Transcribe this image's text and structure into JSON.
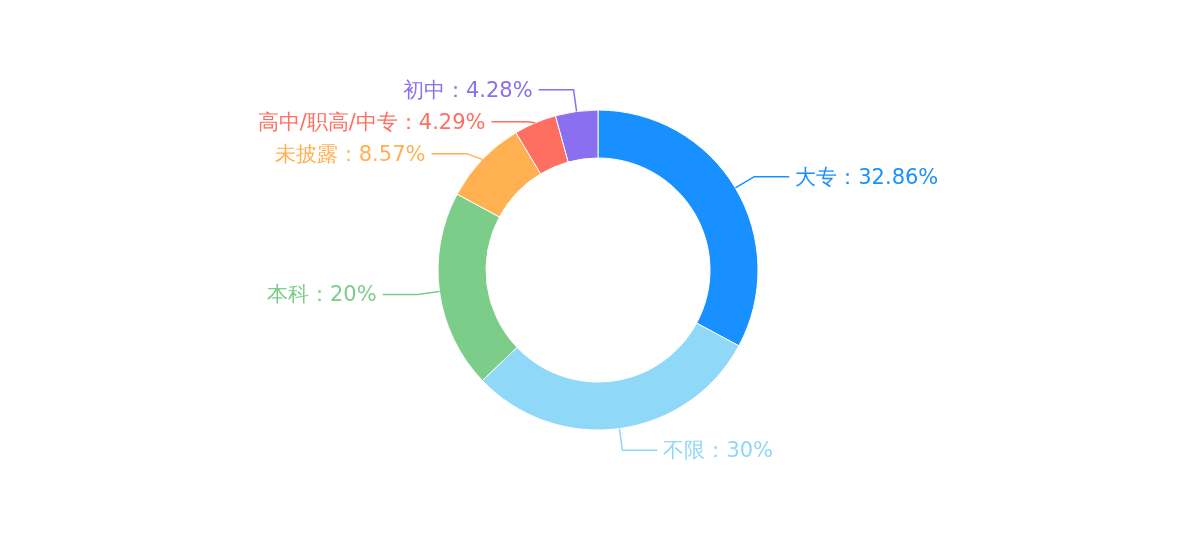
{
  "chart_data": {
    "type": "donut",
    "categories": [
      "大专",
      "不限",
      "本科",
      "未披露",
      "高中/职高/中专",
      "初中"
    ],
    "values": [
      32.86,
      30,
      20,
      8.57,
      4.29,
      4.28
    ],
    "value_labels": [
      "32.86%",
      "30%",
      "20%",
      "8.57%",
      "4.29%",
      "4.28%"
    ],
    "colors": [
      "#1890ff",
      "#8fd8f7",
      "#7ccc8a",
      "#ffb152",
      "#ff6f61",
      "#8a6ff0"
    ]
  }
}
